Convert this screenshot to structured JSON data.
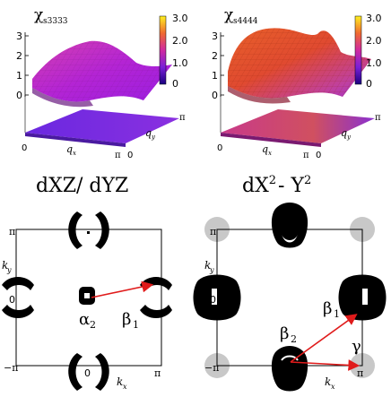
{
  "top_left": {
    "title_symbol": "χ",
    "title_sub": "s3333",
    "z_ticks": [
      "0",
      "1",
      "2",
      "3"
    ],
    "colorbar_ticks": [
      "3.0",
      "2.0",
      "1.0",
      "0"
    ],
    "floor_labels": {
      "origin": "0",
      "qx": "q",
      "qx_sub": "x",
      "pi": "π",
      "qy": "q",
      "qy_sub": "y",
      "pi_y": "π"
    }
  },
  "top_right": {
    "title_symbol": "χ",
    "title_sub": "s4444",
    "z_ticks": [
      "0",
      "1",
      "2",
      "3"
    ],
    "colorbar_ticks": [
      "3.0",
      "2.0",
      "1.0",
      "0"
    ],
    "floor_labels": {
      "origin": "0",
      "qx": "q",
      "qx_sub": "x",
      "pi": "π",
      "qy": "q",
      "qy_sub": "y",
      "pi_y": "π"
    }
  },
  "section_labels": {
    "left": "dXZ/ dYZ",
    "right_base": "dX",
    "right_sup1": "2",
    "right_mid": "- Y",
    "right_sup2": "2"
  },
  "bottom_left": {
    "axis_pi_top": "π",
    "axis_ky": "k",
    "axis_ky_sub": "y",
    "axis_zero_left": "0",
    "axis_neg_pi": "−π",
    "axis_zero_bottom": "0",
    "axis_pi_right": "π",
    "axis_kx": "k",
    "axis_kx_sub": "x",
    "pocket_alpha": "α",
    "pocket_alpha_sub": "2",
    "pocket_beta": "β",
    "pocket_beta_sub": "1"
  },
  "bottom_right": {
    "axis_pi_top": "π",
    "axis_ky": "k",
    "axis_ky_sub": "y",
    "axis_zero_left": "0",
    "axis_neg_pi": "−π",
    "axis_zero_bottom": "0",
    "axis_pi_right": "π",
    "axis_kx": "k",
    "axis_kx_sub": "x",
    "pocket_beta1": "β",
    "pocket_beta1_sub": "1",
    "pocket_beta2": "β",
    "pocket_beta2_sub": "2",
    "pocket_gamma": "γ"
  },
  "colors": {
    "arrow": "#e01b1b",
    "pocket": "#000000",
    "corner_circle": "#c8c8c8",
    "surface_magenta": "#c026c8",
    "surface_orange": "#e8602a",
    "floor_purple": "#7b2ee0",
    "floor_magenta": "#c82a9a"
  }
}
